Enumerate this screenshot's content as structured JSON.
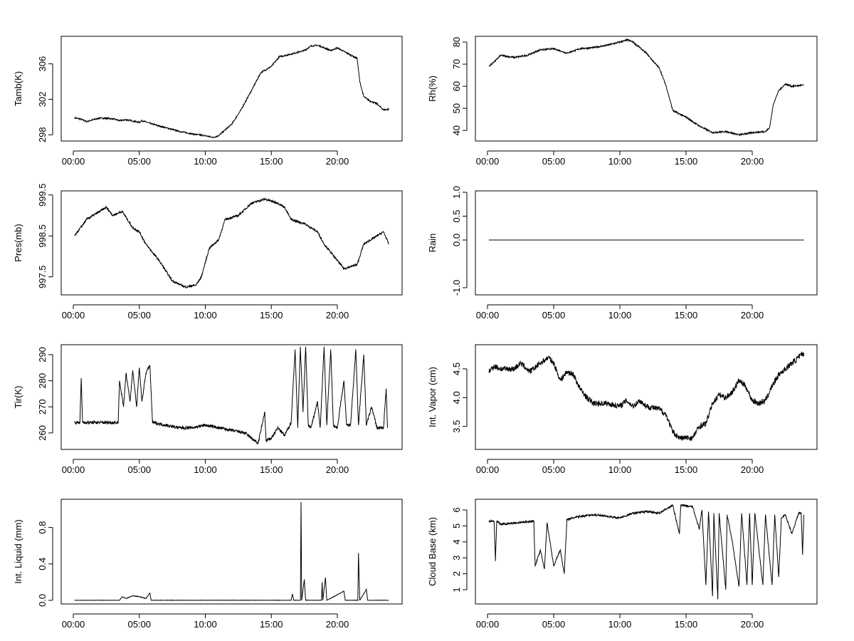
{
  "chart_data": [
    {
      "type": "line",
      "ylabel": "Tamb(K)",
      "ylim": [
        297.3,
        309.1
      ],
      "yticks": [
        "298",
        "302",
        "306"
      ],
      "xticks": [
        "00:00",
        "05:00",
        "10:00",
        "15:00",
        "20:00"
      ],
      "points": [
        [
          0.1,
          299.9
        ],
        [
          0.5,
          299.8
        ],
        [
          1,
          299.5
        ],
        [
          2,
          299.9
        ],
        [
          3,
          299.8
        ],
        [
          3.5,
          299.6
        ],
        [
          4,
          299.7
        ],
        [
          5,
          299.4
        ],
        [
          5.2,
          299.6
        ],
        [
          6,
          299.2
        ],
        [
          7,
          298.8
        ],
        [
          8,
          298.4
        ],
        [
          9,
          298.1
        ],
        [
          10,
          297.9
        ],
        [
          10.6,
          297.7
        ],
        [
          11,
          297.9
        ],
        [
          12,
          299.2
        ],
        [
          12.7,
          300.8
        ],
        [
          13.5,
          303
        ],
        [
          14.2,
          305
        ],
        [
          15,
          305.7
        ],
        [
          15.6,
          306.8
        ],
        [
          16.5,
          307.1
        ],
        [
          17.5,
          307.5
        ],
        [
          18,
          308
        ],
        [
          18.5,
          308.1
        ],
        [
          19,
          307.8
        ],
        [
          19.5,
          307.5
        ],
        [
          20,
          307.8
        ],
        [
          21,
          307.0
        ],
        [
          21.5,
          306.6
        ],
        [
          21.7,
          304
        ],
        [
          22,
          302.3
        ],
        [
          22.5,
          301.8
        ],
        [
          23,
          301.5
        ],
        [
          23.5,
          300.8
        ],
        [
          23.9,
          300.9
        ]
      ]
    },
    {
      "type": "line",
      "ylabel": "Rh(%)",
      "ylim": [
        35.2,
        82.6
      ],
      "yticks": [
        "40",
        "50",
        "60",
        "70",
        "80"
      ],
      "xticks": [
        "00:00",
        "05:00",
        "10:00",
        "15:00",
        "20:00"
      ],
      "points": [
        [
          0.1,
          69
        ],
        [
          0.5,
          71
        ],
        [
          1,
          74
        ],
        [
          2,
          73
        ],
        [
          3,
          74
        ],
        [
          4,
          76.5
        ],
        [
          5,
          77
        ],
        [
          5.5,
          76
        ],
        [
          6,
          75
        ],
        [
          7,
          77
        ],
        [
          8,
          77.5
        ],
        [
          9,
          78.5
        ],
        [
          10,
          80
        ],
        [
          10.6,
          81
        ],
        [
          11,
          80
        ],
        [
          12,
          75
        ],
        [
          13,
          68
        ],
        [
          13.5,
          60
        ],
        [
          14,
          49
        ],
        [
          15,
          46
        ],
        [
          16,
          42
        ],
        [
          17,
          39
        ],
        [
          18,
          39.5
        ],
        [
          19,
          38
        ],
        [
          20,
          39
        ],
        [
          21,
          39.5
        ],
        [
          21.3,
          41
        ],
        [
          21.6,
          52
        ],
        [
          22,
          58
        ],
        [
          22.5,
          61
        ],
        [
          23,
          60
        ],
        [
          23.9,
          60.5
        ]
      ]
    },
    {
      "type": "line",
      "ylabel": "Pres(mb)",
      "ylim": [
        997.06,
        999.6
      ],
      "yticks": [
        "997.5",
        "998.5",
        "999.5"
      ],
      "xticks": [
        "00:00",
        "05:00",
        "10:00",
        "15:00",
        "20:00"
      ],
      "points": [
        [
          0.1,
          998.5
        ],
        [
          1,
          998.9
        ],
        [
          2,
          999.1
        ],
        [
          2.5,
          999.2
        ],
        [
          3,
          999.0
        ],
        [
          3.7,
          999.1
        ],
        [
          4.5,
          998.7
        ],
        [
          5,
          998.6
        ],
        [
          5.5,
          998.3
        ],
        [
          6.5,
          997.9
        ],
        [
          7.5,
          997.4
        ],
        [
          8.5,
          997.25
        ],
        [
          9.3,
          997.3
        ],
        [
          9.7,
          997.5
        ],
        [
          10.3,
          998.2
        ],
        [
          11,
          998.4
        ],
        [
          11.5,
          998.9
        ],
        [
          12.5,
          999.0
        ],
        [
          13.5,
          999.3
        ],
        [
          14.5,
          999.4
        ],
        [
          15.5,
          999.3
        ],
        [
          16,
          999.2
        ],
        [
          16.5,
          998.9
        ],
        [
          17.5,
          998.8
        ],
        [
          18.5,
          998.6
        ],
        [
          19,
          998.3
        ],
        [
          20,
          997.9
        ],
        [
          20.5,
          997.7
        ],
        [
          21,
          997.75
        ],
        [
          21.5,
          997.8
        ],
        [
          22,
          998.3
        ],
        [
          23,
          998.5
        ],
        [
          23.5,
          998.6
        ],
        [
          23.9,
          998.3
        ]
      ]
    },
    {
      "type": "line",
      "ylabel": "Rain",
      "ylim": [
        -1.15,
        1.03
      ],
      "yticks": [
        "-1.0",
        "0.0",
        "0.5",
        "1.0"
      ],
      "xticks": [
        "00:00",
        "05:00",
        "10:00",
        "15:00",
        "20:00"
      ],
      "points": [
        [
          0.1,
          0
        ],
        [
          23.9,
          0
        ]
      ]
    },
    {
      "type": "line",
      "ylabel": "Tir(K)",
      "ylim": [
        253.7,
        293.8
      ],
      "yticks": [
        "260",
        "270",
        "280",
        "290"
      ],
      "xticks": [
        "00:00",
        "05:00",
        "10:00",
        "15:00",
        "20:00"
      ],
      "points": [
        [
          0.1,
          264
        ],
        [
          0.5,
          264
        ],
        [
          0.6,
          281
        ],
        [
          0.7,
          264
        ],
        [
          1.5,
          264
        ],
        [
          3.4,
          264
        ],
        [
          3.5,
          280
        ],
        [
          3.8,
          270
        ],
        [
          4,
          283
        ],
        [
          4.3,
          272
        ],
        [
          4.5,
          284
        ],
        [
          4.8,
          270
        ],
        [
          5,
          285
        ],
        [
          5.2,
          272
        ],
        [
          5.5,
          283
        ],
        [
          5.8,
          286
        ],
        [
          6,
          264
        ],
        [
          7,
          263
        ],
        [
          8,
          262
        ],
        [
          9,
          262
        ],
        [
          10,
          263
        ],
        [
          11,
          262
        ],
        [
          12,
          261
        ],
        [
          13,
          260
        ],
        [
          13.5,
          258
        ],
        [
          14,
          256
        ],
        [
          14.5,
          268
        ],
        [
          14.6,
          257
        ],
        [
          15,
          258
        ],
        [
          15.5,
          262
        ],
        [
          16,
          259
        ],
        [
          16.5,
          264
        ],
        [
          16.8,
          292
        ],
        [
          17,
          262
        ],
        [
          17.2,
          293
        ],
        [
          17.4,
          268
        ],
        [
          17.6,
          293
        ],
        [
          17.8,
          263
        ],
        [
          18,
          262
        ],
        [
          18.5,
          272
        ],
        [
          18.7,
          262
        ],
        [
          19,
          293
        ],
        [
          19.2,
          263
        ],
        [
          19.5,
          292
        ],
        [
          19.7,
          263
        ],
        [
          20,
          262
        ],
        [
          20.5,
          280
        ],
        [
          20.7,
          263
        ],
        [
          21,
          263
        ],
        [
          21.4,
          292
        ],
        [
          21.6,
          263
        ],
        [
          22,
          290
        ],
        [
          22.2,
          263
        ],
        [
          22.6,
          270
        ],
        [
          23,
          262
        ],
        [
          23.5,
          262
        ],
        [
          23.7,
          277
        ],
        [
          23.8,
          262
        ]
      ]
    },
    {
      "type": "line",
      "ylabel": "Int. Vapor (cm)",
      "ylim": [
        3.1,
        4.92
      ],
      "yticks": [
        "3.5",
        "4.0",
        "4.5"
      ],
      "xticks": [
        "00:00",
        "05:00",
        "10:00",
        "15:00",
        "20:00"
      ],
      "points": [
        [
          0.1,
          4.45
        ],
        [
          0.5,
          4.55
        ],
        [
          1,
          4.5
        ],
        [
          2,
          4.5
        ],
        [
          2.5,
          4.6
        ],
        [
          3.2,
          4.45
        ],
        [
          4,
          4.6
        ],
        [
          4.6,
          4.7
        ],
        [
          5,
          4.6
        ],
        [
          5.5,
          4.3
        ],
        [
          6,
          4.45
        ],
        [
          6.5,
          4.4
        ],
        [
          7,
          4.15
        ],
        [
          7.5,
          4.0
        ],
        [
          8,
          3.9
        ],
        [
          9,
          3.9
        ],
        [
          10,
          3.85
        ],
        [
          10.5,
          3.95
        ],
        [
          11,
          3.85
        ],
        [
          11.5,
          3.95
        ],
        [
          12,
          3.85
        ],
        [
          13,
          3.8
        ],
        [
          13.5,
          3.7
        ],
        [
          14,
          3.4
        ],
        [
          14.5,
          3.3
        ],
        [
          15,
          3.3
        ],
        [
          15.5,
          3.3
        ],
        [
          16,
          3.5
        ],
        [
          16.5,
          3.55
        ],
        [
          17,
          3.9
        ],
        [
          17.5,
          4.05
        ],
        [
          18,
          4.0
        ],
        [
          18.5,
          4.1
        ],
        [
          19,
          4.3
        ],
        [
          19.5,
          4.2
        ],
        [
          20,
          3.95
        ],
        [
          20.5,
          3.9
        ],
        [
          21,
          3.95
        ],
        [
          21.5,
          4.2
        ],
        [
          22,
          4.4
        ],
        [
          22.5,
          4.5
        ],
        [
          23,
          4.6
        ],
        [
          23.5,
          4.7
        ],
        [
          23.9,
          4.78
        ]
      ]
    },
    {
      "type": "line",
      "ylabel": "Int. Liquid (mm)",
      "ylim": [
        -0.04,
        1.11
      ],
      "yticks": [
        "0.0",
        "0.4",
        "0.8"
      ],
      "xticks": [
        "00:00",
        "05:00",
        "10:00",
        "15:00",
        "20:00"
      ],
      "points": [
        [
          0.1,
          0
        ],
        [
          3.5,
          0
        ],
        [
          3.7,
          0.04
        ],
        [
          4,
          0.02
        ],
        [
          4.5,
          0.05
        ],
        [
          5,
          0.04
        ],
        [
          5.5,
          0.02
        ],
        [
          5.8,
          0.08
        ],
        [
          5.9,
          0
        ],
        [
          16.5,
          0
        ],
        [
          16.6,
          0.07
        ],
        [
          16.7,
          0
        ],
        [
          17.2,
          0
        ],
        [
          17.25,
          1.08
        ],
        [
          17.3,
          0
        ],
        [
          17.5,
          0.23
        ],
        [
          17.6,
          0
        ],
        [
          18.8,
          0
        ],
        [
          18.85,
          0.2
        ],
        [
          18.9,
          0
        ],
        [
          19.1,
          0.25
        ],
        [
          19.2,
          0
        ],
        [
          20.5,
          0.1
        ],
        [
          20.6,
          0
        ],
        [
          21.55,
          0
        ],
        [
          21.6,
          0.52
        ],
        [
          21.7,
          0
        ],
        [
          22.2,
          0.12
        ],
        [
          22.3,
          0
        ],
        [
          23.9,
          0
        ]
      ]
    },
    {
      "type": "line",
      "ylabel": "Cloud Base (km)",
      "ylim": [
        0.11,
        6.67
      ],
      "yticks": [
        "1",
        "2",
        "3",
        "4",
        "5",
        "6"
      ],
      "xticks": [
        "00:00",
        "05:00",
        "10:00",
        "15:00",
        "20:00"
      ],
      "points": [
        [
          0.1,
          5.3
        ],
        [
          0.5,
          5.3
        ],
        [
          0.6,
          2.8
        ],
        [
          0.7,
          5.3
        ],
        [
          1,
          5.1
        ],
        [
          3.5,
          5.3
        ],
        [
          3.6,
          2.5
        ],
        [
          4,
          3.5
        ],
        [
          4.3,
          2.3
        ],
        [
          4.5,
          5.2
        ],
        [
          5,
          2.5
        ],
        [
          5.5,
          3.5
        ],
        [
          5.8,
          2
        ],
        [
          6,
          5.4
        ],
        [
          7,
          5.6
        ],
        [
          8,
          5.7
        ],
        [
          9,
          5.6
        ],
        [
          10,
          5.5
        ],
        [
          11,
          5.8
        ],
        [
          12,
          5.9
        ],
        [
          13,
          5.8
        ],
        [
          14,
          6.3
        ],
        [
          14.5,
          4.5
        ],
        [
          14.6,
          6.3
        ],
        [
          15.5,
          6.2
        ],
        [
          16,
          4.8
        ],
        [
          16.2,
          6
        ],
        [
          16.5,
          1.3
        ],
        [
          16.7,
          5.9
        ],
        [
          17,
          0.6
        ],
        [
          17.1,
          5.8
        ],
        [
          17.4,
          0.4
        ],
        [
          17.5,
          5.8
        ],
        [
          18,
          1
        ],
        [
          18.1,
          5.7
        ],
        [
          18.5,
          4
        ],
        [
          19,
          1.2
        ],
        [
          19.2,
          5.8
        ],
        [
          19.6,
          1.3
        ],
        [
          19.8,
          5.8
        ],
        [
          20,
          1.3
        ],
        [
          20.2,
          5.8
        ],
        [
          20.8,
          1.3
        ],
        [
          21,
          5.7
        ],
        [
          21.5,
          1.3
        ],
        [
          21.7,
          5.7
        ],
        [
          22,
          1.8
        ],
        [
          22.2,
          5.5
        ],
        [
          22.5,
          5.7
        ],
        [
          23,
          4.5
        ],
        [
          23.5,
          5.8
        ],
        [
          23.7,
          5.8
        ],
        [
          23.8,
          3.2
        ],
        [
          23.9,
          5.7
        ]
      ]
    }
  ]
}
